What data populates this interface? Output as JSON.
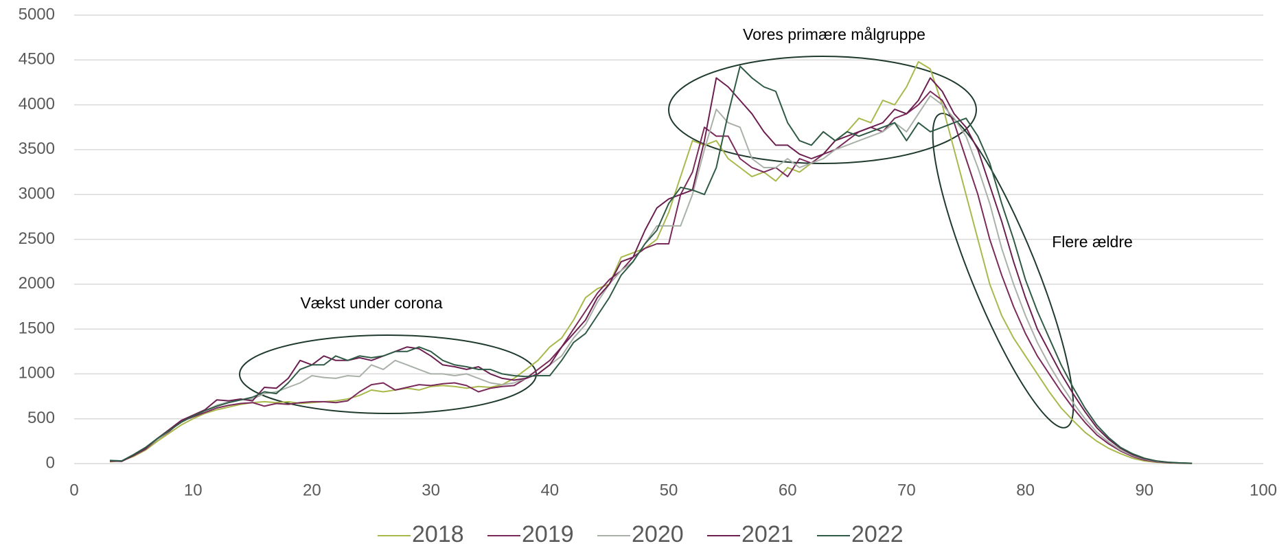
{
  "chart_data": {
    "type": "line",
    "x": [
      3,
      4,
      5,
      6,
      7,
      8,
      9,
      10,
      11,
      12,
      13,
      14,
      15,
      16,
      17,
      18,
      19,
      20,
      21,
      22,
      23,
      24,
      25,
      26,
      27,
      28,
      29,
      30,
      31,
      32,
      33,
      34,
      35,
      36,
      37,
      38,
      39,
      40,
      41,
      42,
      43,
      44,
      45,
      46,
      47,
      48,
      49,
      50,
      51,
      52,
      53,
      54,
      55,
      56,
      57,
      58,
      59,
      60,
      61,
      62,
      63,
      64,
      65,
      66,
      67,
      68,
      69,
      70,
      71,
      72,
      73,
      74,
      75,
      76,
      77,
      78,
      79,
      80,
      81,
      82,
      83,
      84,
      85,
      86,
      87,
      88,
      89,
      90,
      91,
      92,
      93,
      94
    ],
    "series": [
      {
        "name": "2018",
        "color": "#a9b84a",
        "values": [
          20,
          30,
          80,
          150,
          250,
          340,
          430,
          500,
          560,
          600,
          630,
          660,
          680,
          690,
          680,
          690,
          670,
          680,
          690,
          700,
          720,
          760,
          820,
          800,
          820,
          840,
          820,
          860,
          870,
          860,
          840,
          860,
          850,
          880,
          950,
          1050,
          1150,
          1300,
          1400,
          1600,
          1850,
          1950,
          2000,
          2300,
          2350,
          2400,
          2500,
          2800,
          3200,
          3600,
          3550,
          3600,
          3400,
          3300,
          3200,
          3250,
          3150,
          3300,
          3250,
          3350,
          3450,
          3600,
          3700,
          3850,
          3800,
          4050,
          4000,
          4200,
          4480,
          4400,
          4000,
          3500,
          3000,
          2500,
          2000,
          1650,
          1400,
          1200,
          1000,
          800,
          620,
          480,
          350,
          250,
          170,
          110,
          60,
          30,
          15,
          8,
          4,
          2
        ]
      },
      {
        "name": "2019",
        "color": "#7a2a5a",
        "values": [
          25,
          30,
          90,
          160,
          270,
          360,
          470,
          520,
          570,
          620,
          650,
          670,
          680,
          640,
          670,
          660,
          680,
          690,
          690,
          680,
          700,
          800,
          880,
          900,
          820,
          850,
          880,
          870,
          890,
          900,
          870,
          800,
          840,
          860,
          870,
          950,
          1050,
          1150,
          1300,
          1500,
          1700,
          1900,
          2050,
          2150,
          2300,
          2400,
          2450,
          2450,
          3000,
          3250,
          3750,
          3650,
          3650,
          3400,
          3300,
          3250,
          3300,
          3200,
          3400,
          3350,
          3450,
          3500,
          3600,
          3700,
          3750,
          3700,
          3850,
          3900,
          4000,
          4150,
          4050,
          3800,
          3400,
          3000,
          2500,
          2100,
          1750,
          1450,
          1200,
          1000,
          800,
          620,
          460,
          320,
          220,
          140,
          80,
          40,
          20,
          10,
          5,
          3
        ]
      },
      {
        "name": "2020",
        "color": "#a8b0a8",
        "values": [
          30,
          25,
          90,
          170,
          270,
          370,
          460,
          530,
          590,
          650,
          690,
          710,
          720,
          780,
          800,
          850,
          900,
          980,
          960,
          950,
          980,
          970,
          1100,
          1050,
          1150,
          1100,
          1050,
          1000,
          1000,
          980,
          1000,
          950,
          900,
          880,
          900,
          950,
          1000,
          1100,
          1200,
          1400,
          1550,
          1800,
          2000,
          2150,
          2250,
          2450,
          2650,
          2650,
          2650,
          3000,
          3500,
          3950,
          3800,
          3750,
          3400,
          3300,
          3300,
          3400,
          3300,
          3350,
          3400,
          3500,
          3550,
          3600,
          3650,
          3700,
          3800,
          3700,
          3900,
          4100,
          4000,
          3850,
          3650,
          3300,
          2900,
          2400,
          2000,
          1650,
          1350,
          1100,
          880,
          680,
          500,
          350,
          240,
          150,
          90,
          50,
          25,
          12,
          6,
          3
        ]
      },
      {
        "name": "2021",
        "color": "#6b1f50",
        "values": [
          30,
          25,
          90,
          170,
          280,
          380,
          480,
          540,
          600,
          710,
          700,
          720,
          700,
          850,
          840,
          950,
          1150,
          1100,
          1200,
          1150,
          1150,
          1180,
          1150,
          1200,
          1250,
          1300,
          1280,
          1200,
          1100,
          1080,
          1050,
          1080,
          1000,
          950,
          930,
          950,
          1000,
          1100,
          1300,
          1450,
          1600,
          1850,
          2000,
          2250,
          2300,
          2600,
          2850,
          2950,
          3000,
          3050,
          3600,
          4300,
          4200,
          4050,
          3900,
          3700,
          3550,
          3550,
          3450,
          3400,
          3450,
          3600,
          3650,
          3700,
          3750,
          3800,
          3950,
          3900,
          4050,
          4300,
          4150,
          3900,
          3750,
          3500,
          3100,
          2700,
          2250,
          1850,
          1500,
          1250,
          1000,
          780,
          580,
          400,
          270,
          170,
          100,
          55,
          28,
          14,
          7,
          3
        ]
      },
      {
        "name": "2022",
        "color": "#2f5a45",
        "values": [
          35,
          30,
          100,
          180,
          280,
          370,
          460,
          530,
          590,
          640,
          680,
          710,
          740,
          800,
          780,
          900,
          1050,
          1100,
          1100,
          1200,
          1150,
          1200,
          1180,
          1200,
          1250,
          1250,
          1300,
          1250,
          1150,
          1100,
          1080,
          1050,
          1050,
          1000,
          980,
          970,
          980,
          980,
          1150,
          1350,
          1450,
          1650,
          1850,
          2100,
          2250,
          2450,
          2600,
          2900,
          3080,
          3050,
          3000,
          3300,
          3900,
          4430,
          4300,
          4200,
          4150,
          3800,
          3600,
          3550,
          3700,
          3600,
          3700,
          3650,
          3700,
          3750,
          3800,
          3600,
          3800,
          3700,
          3750,
          3800,
          3850,
          3650,
          3350,
          2900,
          2500,
          2050,
          1700,
          1400,
          1100,
          850,
          620,
          430,
          290,
          180,
          110,
          60,
          30,
          15,
          8,
          4
        ]
      }
    ],
    "xlim": [
      0,
      100
    ],
    "xticks": [
      0,
      10,
      20,
      30,
      40,
      50,
      60,
      70,
      80,
      90,
      100
    ],
    "ylim": [
      0,
      5000
    ],
    "yticks": [
      0,
      500,
      1000,
      1500,
      2000,
      2500,
      3000,
      3500,
      4000,
      4500,
      5000
    ],
    "grid": true,
    "legend": "bottom",
    "annotations": [
      "Vækst under corona",
      "Vores primære målgruppe",
      "Flere ældre"
    ]
  }
}
